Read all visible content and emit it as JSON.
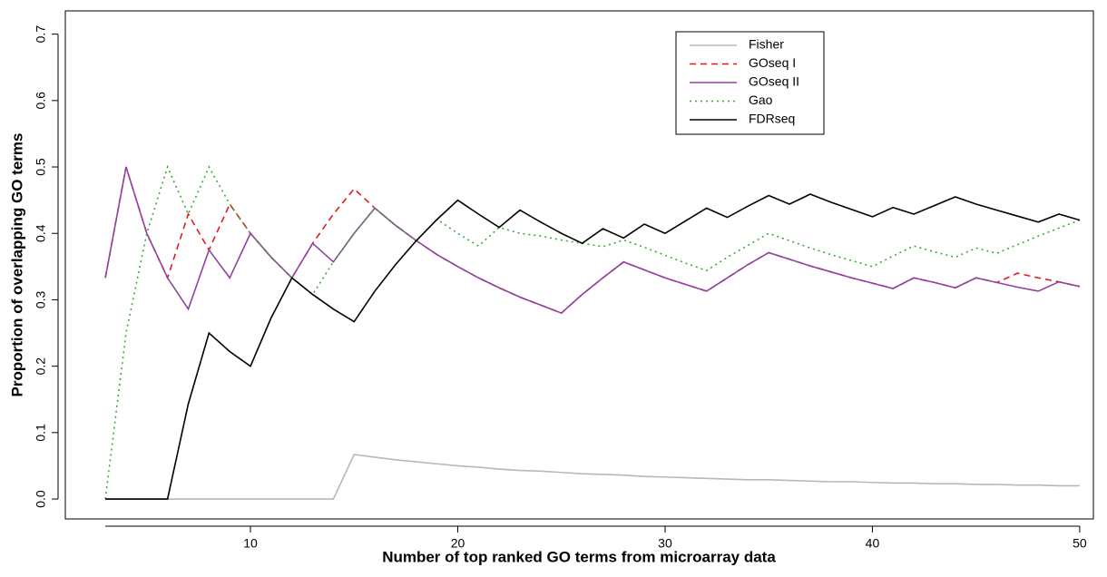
{
  "chart_data": {
    "type": "line",
    "x_label": "Number of top ranked GO terms from microarray data",
    "y_label": "Proportion of overlapping GO terms",
    "x": [
      3,
      4,
      5,
      6,
      7,
      8,
      9,
      10,
      11,
      12,
      13,
      14,
      15,
      16,
      17,
      18,
      19,
      20,
      21,
      22,
      23,
      24,
      25,
      26,
      27,
      28,
      29,
      30,
      31,
      32,
      33,
      34,
      35,
      36,
      37,
      38,
      39,
      40,
      41,
      42,
      43,
      44,
      45,
      46,
      47,
      48,
      49,
      50
    ],
    "series": [
      {
        "name": "Fisher",
        "color": "#b8b8b8",
        "dash": "solid",
        "values": [
          0,
          0,
          0,
          0,
          0,
          0,
          0,
          0,
          0,
          0,
          0,
          0,
          0.067,
          0.063,
          0.059,
          0.056,
          0.053,
          0.05,
          0.048,
          0.045,
          0.043,
          0.042,
          0.04,
          0.038,
          0.037,
          0.036,
          0.034,
          0.033,
          0.032,
          0.031,
          0.03,
          0.029,
          0.029,
          0.028,
          0.027,
          0.026,
          0.026,
          0.025,
          0.024,
          0.024,
          0.023,
          0.023,
          0.022,
          0.022,
          0.021,
          0.021,
          0.02,
          0.02
        ]
      },
      {
        "name": "GOseq I",
        "color": "#e41a1c",
        "dash": "dashed",
        "values": [
          0.333,
          0.5,
          0.4,
          0.333,
          0.429,
          0.375,
          0.444,
          0.4,
          0.364,
          0.333,
          0.385,
          0.429,
          0.467,
          0.438,
          0.412,
          0.389,
          0.368,
          0.35,
          0.333,
          0.318,
          0.304,
          0.292,
          0.28,
          0.308,
          0.333,
          0.357,
          0.345,
          0.333,
          0.323,
          0.313,
          0.333,
          0.353,
          0.371,
          0.361,
          0.351,
          0.342,
          0.333,
          0.325,
          0.317,
          0.333,
          0.326,
          0.318,
          0.333,
          0.326,
          0.34,
          0.333,
          0.327,
          0.32
        ]
      },
      {
        "name": "GOseq II",
        "color": "#8e44a0",
        "dash": "solid",
        "values": [
          0.333,
          0.5,
          0.4,
          0.333,
          0.286,
          0.375,
          0.333,
          0.4,
          0.364,
          0.333,
          0.385,
          0.357,
          0.4,
          0.438,
          0.412,
          0.389,
          0.368,
          0.35,
          0.333,
          0.318,
          0.304,
          0.292,
          0.28,
          0.308,
          0.333,
          0.357,
          0.345,
          0.333,
          0.323,
          0.313,
          0.333,
          0.353,
          0.371,
          0.361,
          0.351,
          0.342,
          0.333,
          0.325,
          0.317,
          0.333,
          0.326,
          0.318,
          0.333,
          0.326,
          0.319,
          0.313,
          0.327,
          0.32
        ]
      },
      {
        "name": "Gao",
        "color": "#3aaa35",
        "dash": "dotted",
        "values": [
          0,
          0.25,
          0.4,
          0.5,
          0.429,
          0.5,
          0.444,
          0.4,
          0.364,
          0.333,
          0.308,
          0.357,
          0.4,
          0.438,
          0.412,
          0.389,
          0.421,
          0.4,
          0.381,
          0.409,
          0.4,
          0.396,
          0.39,
          0.385,
          0.38,
          0.39,
          0.379,
          0.367,
          0.355,
          0.344,
          0.364,
          0.382,
          0.4,
          0.389,
          0.378,
          0.368,
          0.359,
          0.35,
          0.366,
          0.381,
          0.372,
          0.364,
          0.378,
          0.37,
          0.383,
          0.396,
          0.408,
          0.42
        ]
      },
      {
        "name": "FDRseq",
        "color": "#000000",
        "dash": "solid",
        "values": [
          0,
          0,
          0,
          0,
          0.143,
          0.25,
          0.222,
          0.2,
          0.273,
          0.333,
          0.308,
          0.286,
          0.267,
          0.313,
          0.353,
          0.389,
          0.421,
          0.45,
          0.429,
          0.409,
          0.435,
          0.417,
          0.4,
          0.385,
          0.407,
          0.393,
          0.414,
          0.4,
          0.419,
          0.438,
          0.424,
          0.441,
          0.457,
          0.444,
          0.459,
          0.447,
          0.436,
          0.425,
          0.439,
          0.429,
          0.442,
          0.455,
          0.444,
          0.435,
          0.426,
          0.417,
          0.429,
          0.42
        ]
      }
    ],
    "xlim": [
      1.07,
      50.66
    ],
    "ylim": [
      -0.03,
      0.735
    ],
    "xticks": [
      10,
      20,
      30,
      40,
      50
    ],
    "yticks": [
      {
        "value": 0,
        "label": "0.0"
      },
      0.1,
      0.2,
      0.3,
      0.4,
      0.5,
      0.6,
      0.7
    ],
    "legend": "top-right",
    "grid": false
  }
}
